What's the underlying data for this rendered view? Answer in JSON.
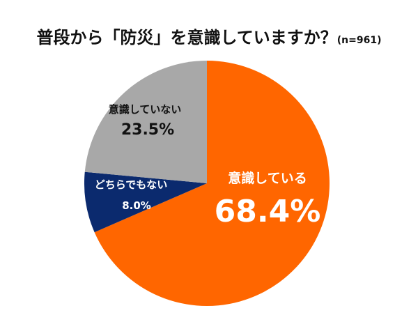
{
  "chart_data": {
    "type": "pie",
    "title": "普段から「防災」を意識していますか？",
    "subtitle": "(n=961)",
    "start": "top",
    "direction": "clockwise",
    "slices": [
      {
        "label": "意識している",
        "value": 68.4,
        "value_label": "68.4%",
        "color": "#FF6600",
        "text_color": "#FFFFFF"
      },
      {
        "label": "どちらでもない",
        "value": 8.0,
        "value_label": "8.0%",
        "color": "#0B2A6E",
        "text_color": "#FFFFFF"
      },
      {
        "label": "意識していない",
        "value": 23.5,
        "value_label": "23.5%",
        "color": "#A8A8A8",
        "text_color": "#111111"
      }
    ]
  }
}
